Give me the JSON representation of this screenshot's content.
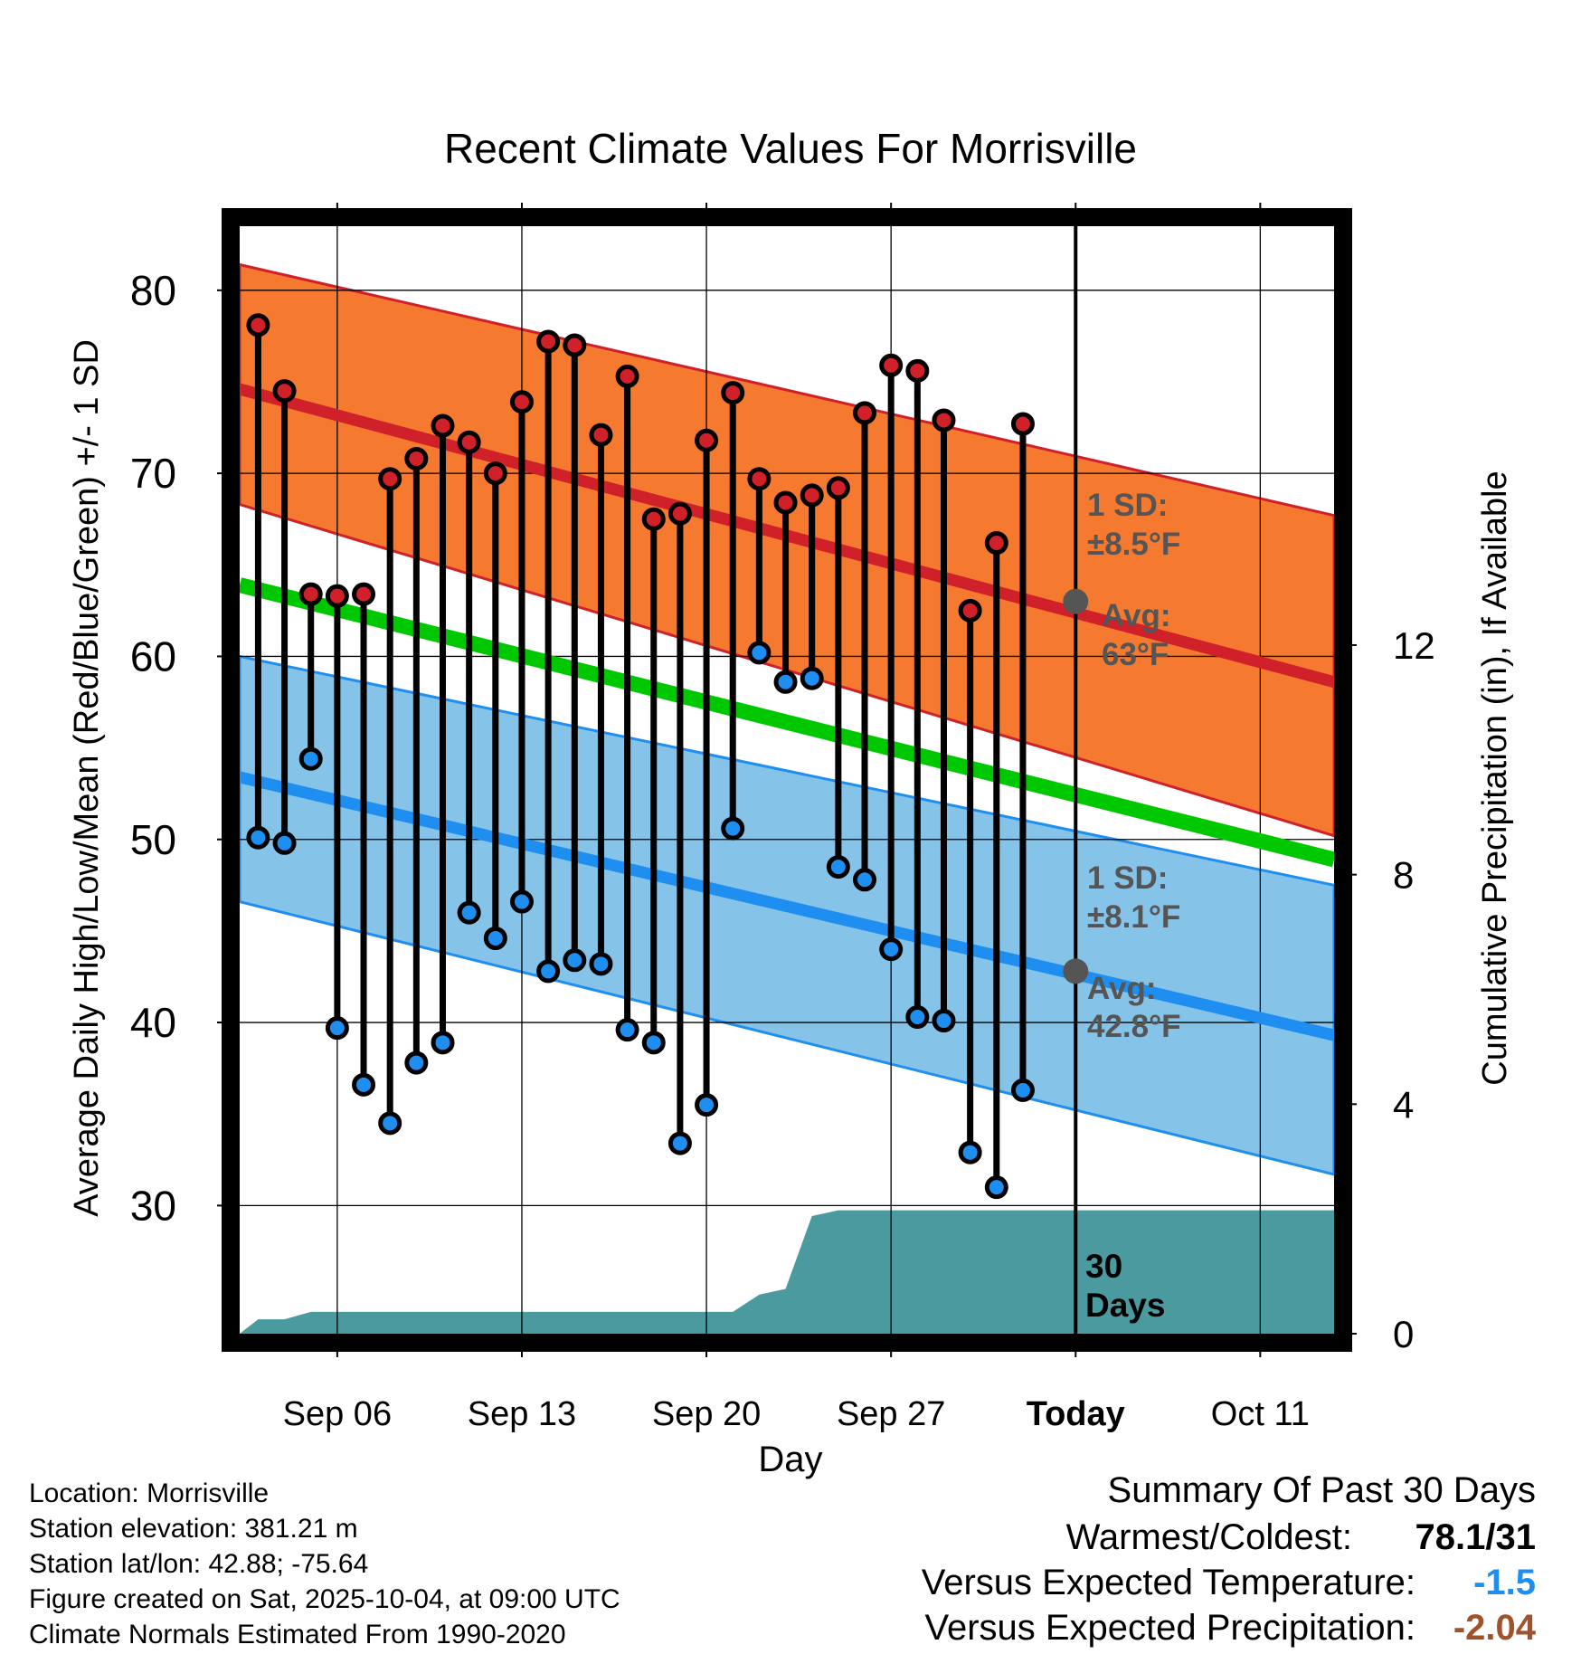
{
  "chart_data": {
    "type": "line",
    "title": "Recent Climate Values For Morrisville",
    "xlabel": "Day",
    "ylabel": "Average Daily High/Low/Mean (Red/Blue/Green) +/- 1 SD",
    "y2label": "Cumulative Precipitation (in), If Available",
    "ylim": [
      23,
      83.5
    ],
    "y2lim": [
      0,
      19.3
    ],
    "xlim": [
      -0.7,
      40.8
    ],
    "yticks": [
      "30",
      "40",
      "50",
      "60",
      "70",
      "80"
    ],
    "y2ticks": [
      "0",
      "4",
      "8",
      "12"
    ],
    "xticks": [
      {
        "day": 3,
        "label": "Sep 06"
      },
      {
        "day": 10,
        "label": "Sep 13"
      },
      {
        "day": 17,
        "label": "Sep 20"
      },
      {
        "day": 24,
        "label": "Sep 27"
      },
      {
        "day": 31,
        "label": "Today"
      },
      {
        "day": 38,
        "label": "Oct 11"
      }
    ],
    "today_index": 31,
    "period_label": "30 Days",
    "normals": {
      "high_mean": {
        "x": [
          -0.7,
          40.8
        ],
        "y": [
          74.6,
          58.6
        ]
      },
      "high_sd_upper": {
        "x": [
          -0.7,
          40.8
        ],
        "y": [
          81.4,
          67.7
        ]
      },
      "high_sd_lower": {
        "x": [
          -0.7,
          40.8
        ],
        "y": [
          68.3,
          50.2
        ]
      },
      "mean": {
        "x": [
          -0.7,
          40.8
        ],
        "y": [
          63.9,
          48.9
        ]
      },
      "low_mean": {
        "x": [
          -0.7,
          40.8
        ],
        "y": [
          53.4,
          39.3
        ]
      },
      "low_sd_upper": {
        "x": [
          -0.7,
          40.8
        ],
        "y": [
          60.0,
          47.5
        ]
      },
      "low_sd_lower": {
        "x": [
          -0.7,
          40.8
        ],
        "y": [
          46.6,
          31.7
        ]
      }
    },
    "annotations": {
      "high_sd": "1 SD:",
      "high_sd_value": "±8.5°F",
      "high_avg": "Avg:",
      "high_avg_value": "63°F",
      "low_sd": "1 SD:",
      "low_sd_value": "±8.1°F",
      "low_avg": "Avg:",
      "low_avg_value": "42.8°F"
    },
    "today_markers": {
      "high_avg": 63,
      "low_avg": 42.8
    },
    "series": [
      {
        "name": "Daily High",
        "color": "#d0202a",
        "values": [
          78.1,
          74.5,
          63.4,
          63.3,
          63.4,
          69.7,
          70.8,
          72.6,
          71.7,
          70.0,
          73.9,
          77.2,
          77.0,
          72.1,
          75.3,
          67.5,
          67.8,
          71.8,
          74.4,
          69.7,
          68.4,
          68.8,
          69.2,
          73.3,
          75.9,
          75.6,
          72.9,
          62.5,
          66.2,
          72.7
        ]
      },
      {
        "name": "Daily Low",
        "color": "#1e8ff0",
        "values": [
          50.1,
          49.8,
          54.4,
          39.7,
          36.6,
          34.5,
          37.8,
          38.9,
          46.0,
          44.6,
          46.6,
          42.8,
          43.4,
          43.2,
          39.6,
          38.9,
          33.4,
          35.5,
          50.6,
          60.2,
          58.6,
          58.8,
          48.5,
          47.8,
          44.0,
          40.3,
          40.1,
          32.9,
          31.0,
          36.3
        ]
      },
      {
        "name": "Cumulative Precipitation",
        "color": "#4a9aa0",
        "x": [
          -0.7,
          0.0,
          1.0,
          2.0,
          3.0,
          18.0,
          19.0,
          20.0,
          21.0,
          22.0,
          23.0,
          40.8
        ],
        "values": [
          0,
          0.25,
          0.25,
          0.38,
          0.38,
          0.38,
          0.68,
          0.78,
          2.05,
          2.15,
          2.15,
          2.15
        ]
      }
    ]
  },
  "info": {
    "location": "Location: Morrisville",
    "elevation": "Station elevation: 381.21 m",
    "latlon": "Station lat/lon: 42.88; -75.64",
    "created": "Figure created on Sat, 2025-10-04, at 09:00 UTC",
    "normals": "Climate Normals Estimated From 1990-2020"
  },
  "summary": {
    "title": "Summary Of Past 30 Days",
    "warm_cold_label": "Warmest/Coldest:",
    "warm_cold_value": "78.1/31",
    "temp_label": "Versus Expected Temperature:",
    "temp_value": "-1.5",
    "temp_color": "#1e8ff0",
    "precip_label": "Versus Expected Precipitation:",
    "precip_value": "-2.04",
    "precip_color": "#a0522d"
  },
  "colors": {
    "high_band": "#f57a30",
    "high_line": "#d0202a",
    "mean_line": "#00c800",
    "low_band": "#86c3e8",
    "low_line": "#1e8ff0",
    "precip": "#4a9aa0",
    "annotation": "#555555"
  }
}
